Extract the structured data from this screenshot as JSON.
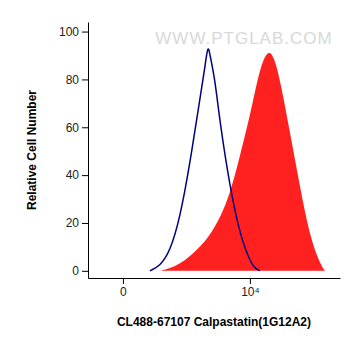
{
  "chart_data": {
    "type": "area",
    "x_label": "CL488-67107 Calpastatin(1G12A2)",
    "y_label": "Relative Cell Number",
    "annotations": [
      "WWW.PTGLAB.COM"
    ],
    "log": "x",
    "xlim": [
      -256,
      267000
    ],
    "xticks": [
      {
        "value": 0,
        "label": "0"
      },
      {
        "value": 10000,
        "label": "10⁴"
      }
    ],
    "ylim": [
      -3,
      104
    ],
    "yticks": [
      0,
      20,
      40,
      60,
      80,
      100
    ],
    "series": [
      {
        "type": "area",
        "color": "#ff2020",
        "x": [
          284,
          452,
          695,
          1043,
          1544,
          2270,
          3300,
          4790,
          6950,
          10030,
          12050,
          14450,
          17400,
          20860,
          25040,
          30050,
          43200,
          62300,
          89700,
          128900,
          154700
        ],
        "values": [
          0,
          1,
          3,
          6,
          10,
          15,
          22,
          32,
          48,
          65,
          75,
          84,
          90,
          92,
          88,
          80,
          58,
          35,
          14,
          3,
          0
        ]
      },
      {
        "type": "line",
        "color": "#000080",
        "x": [
          167,
          284,
          452,
          695,
          1043,
          1544,
          1870,
          2100,
          2270,
          2740,
          3300,
          4790,
          6950,
          10030,
          12050,
          14450
        ],
        "values": [
          0,
          2,
          8,
          22,
          45,
          72,
          85,
          95,
          90,
          80,
          62,
          35,
          15,
          4,
          1,
          0
        ]
      }
    ]
  }
}
